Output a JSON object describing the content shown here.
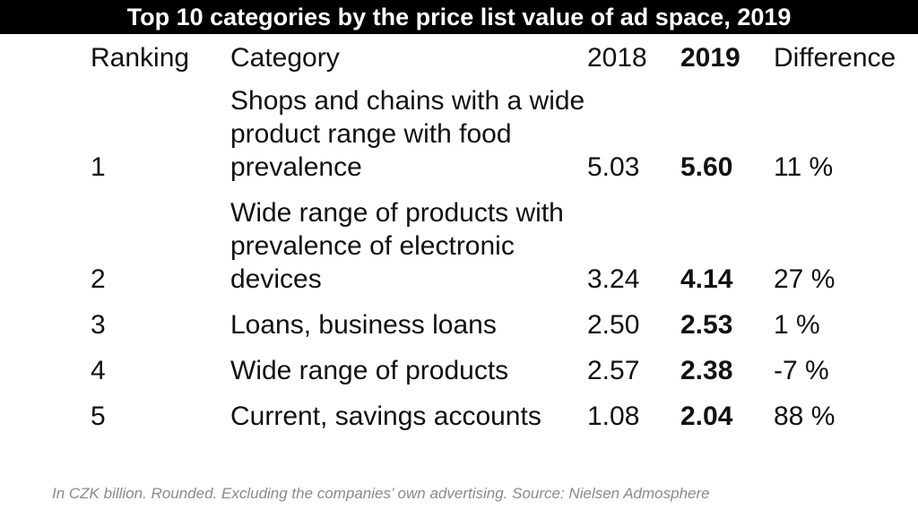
{
  "chart_data": {
    "type": "table",
    "title": "Top 10 categories by the price list value of ad space, 2019",
    "columns": [
      "Ranking",
      "Category",
      "2018",
      "2019",
      "Difference"
    ],
    "rows": [
      {
        "ranking": "1",
        "category": "Shops and chains with a wide product range with food prevalence",
        "y2018": "5.03",
        "y2019": "5.60",
        "difference": "11 %"
      },
      {
        "ranking": "2",
        "category": "Wide range of products with prevalence of electronic devices",
        "y2018": "3.24",
        "y2019": "4.14",
        "difference": "27 %"
      },
      {
        "ranking": "3",
        "category": "Loans, business loans",
        "y2018": "2.50",
        "y2019": "2.53",
        "difference": "1 %"
      },
      {
        "ranking": "4",
        "category": "Wide range of products",
        "y2018": "2.57",
        "y2019": "2.38",
        "difference": "-7 %"
      },
      {
        "ranking": "5",
        "category": "Current, savings accounts",
        "y2018": "1.08",
        "y2019": "2.04",
        "difference": "88 %"
      }
    ],
    "note": "In CZK billion. Rounded. Excluding the companies’ own advertising. Source: Nielsen Admosphere"
  }
}
